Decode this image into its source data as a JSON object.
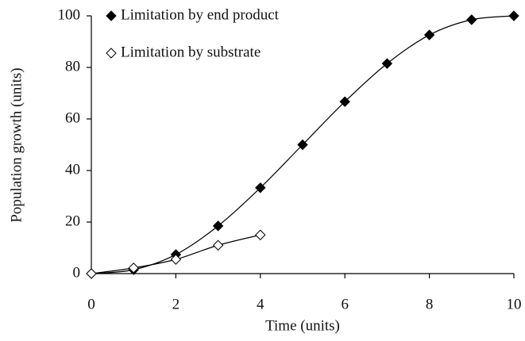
{
  "chart_data": {
    "type": "scatter",
    "x_label": "Time (units)",
    "y_label": "Population growth (units)",
    "xlim": [
      0,
      10
    ],
    "xticks": [
      0,
      2,
      4,
      6,
      8,
      10
    ],
    "ylim": [
      0,
      100
    ],
    "yticks": [
      0,
      20,
      40,
      60,
      80,
      100
    ],
    "grid": false,
    "legend": "upper left",
    "series": [
      {
        "name": "Limitation by end product",
        "color": "#000000",
        "marker": "filled-diamond",
        "x": [
          0,
          1,
          2,
          3,
          4,
          5,
          6,
          7,
          8,
          9,
          10
        ],
        "values": [
          0,
          1.5,
          7.4,
          18.5,
          33.3,
          50,
          66.7,
          81.5,
          92.6,
          98.5,
          100
        ]
      },
      {
        "name": "Limitation by substrate",
        "color": "#000000",
        "marker": "hollow-diamond",
        "x": [
          0,
          1,
          2,
          3,
          4
        ],
        "values": [
          0,
          2.2,
          5.5,
          11,
          15
        ]
      }
    ]
  }
}
